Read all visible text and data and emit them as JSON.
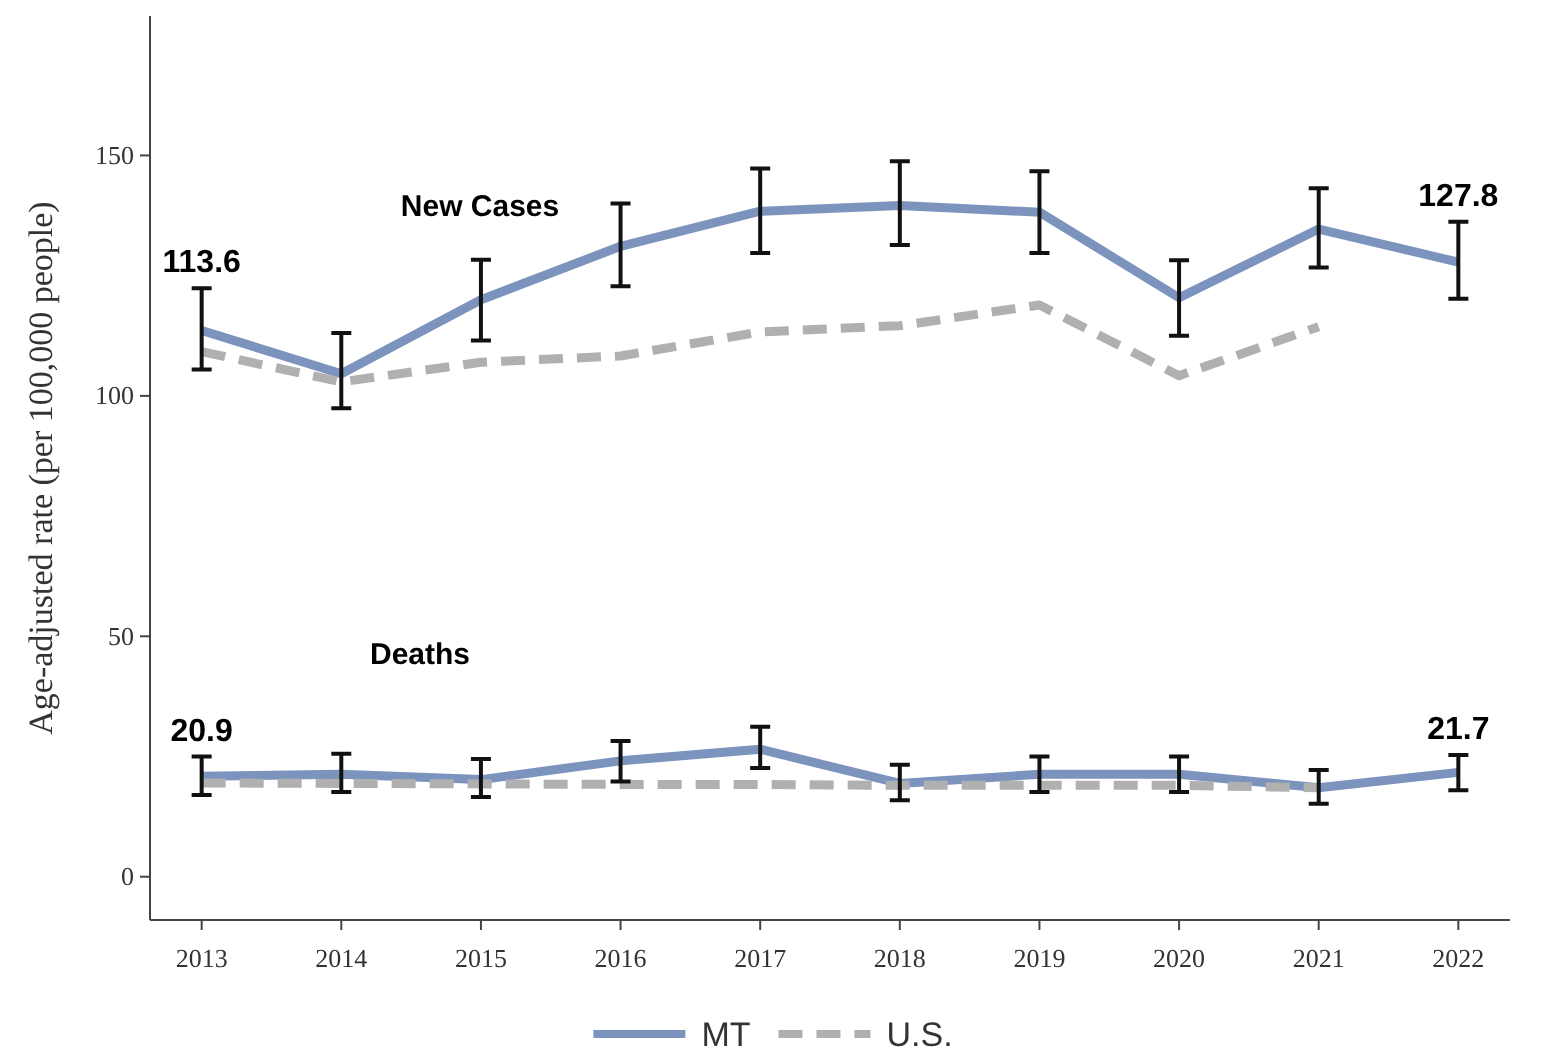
{
  "chart_data": {
    "type": "line",
    "ylabel": "Age-adjusted rate (per 100,000 people)",
    "x": [
      2013,
      2014,
      2015,
      2016,
      2017,
      2018,
      2019,
      2020,
      2021,
      2022
    ],
    "xlim": [
      2012.63,
      2022.37
    ],
    "xticks": [
      2013,
      2014,
      2015,
      2016,
      2017,
      2018,
      2019,
      2020,
      2021,
      2022
    ],
    "ylim": [
      -9,
      179
    ],
    "yticks": [
      0,
      50,
      100,
      150
    ],
    "grid": false,
    "legend": "bottom",
    "marker": "none",
    "annotations": [
      "New Cases",
      "Deaths"
    ],
    "series": [
      {
        "name": "MT",
        "color": "#7b93bd",
        "line_style": "solid",
        "values": [
          113.6,
          104.6,
          120.0,
          131.1,
          138.4,
          139.6,
          138.2,
          120.4,
          134.7,
          127.8
        ],
        "errors": [
          [
            105.5,
            122.4
          ],
          [
            97.4,
            113.1
          ],
          [
            111.5,
            128.3
          ],
          [
            122.8,
            140
          ],
          [
            129.7,
            147.3
          ],
          [
            131.4,
            148.8
          ],
          [
            129.7,
            146.7
          ],
          [
            112.5,
            128.2
          ],
          [
            126.7,
            143.2
          ],
          [
            120.2,
            136.2
          ]
        ],
        "value_labels": [
          "113.6",
          null,
          null,
          null,
          null,
          null,
          null,
          null,
          null,
          "127.8"
        ]
      },
      {
        "name": "U.S.",
        "color": "#b0b0b0",
        "line_style": "dashed",
        "values": [
          109.2,
          102.9,
          107,
          108.3,
          113.3,
          114.6,
          118.9,
          104.2,
          114.4,
          null
        ]
      },
      {
        "color": "#7b93bd",
        "line_style": "solid",
        "values": [
          20.9,
          21.3,
          20.2,
          24.1,
          26.5,
          19.4,
          21.3,
          21.3,
          18.5,
          21.7
        ],
        "errors": [
          [
            17,
            25
          ],
          [
            17.6,
            25.6
          ],
          [
            16.6,
            24.5
          ],
          [
            19.8,
            28.2
          ],
          [
            22.6,
            31.2
          ],
          [
            15.9,
            23.3
          ],
          [
            17.6,
            25
          ],
          [
            17.6,
            25
          ],
          [
            15.2,
            22.2
          ],
          [
            18,
            25.3
          ]
        ],
        "value_labels": [
          "20.9",
          null,
          null,
          null,
          null,
          null,
          null,
          null,
          null,
          "21.7"
        ]
      },
      {
        "color": "#b0b0b0",
        "line_style": "dashed",
        "values": [
          19.5,
          19.4,
          19.3,
          19.2,
          19.2,
          19,
          19,
          19,
          18.5,
          null
        ]
      }
    ]
  }
}
